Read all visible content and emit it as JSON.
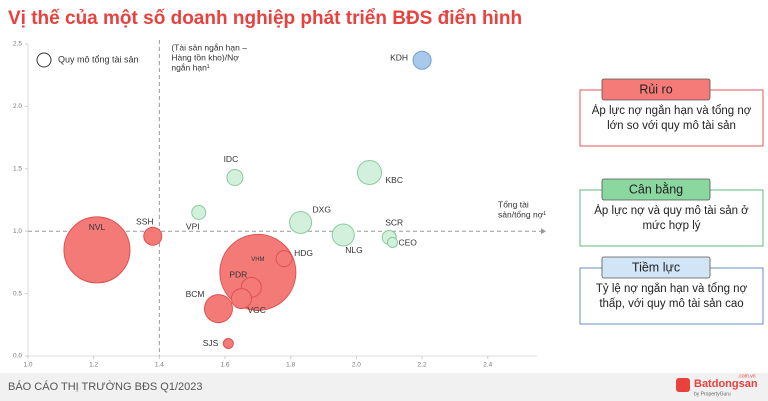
{
  "chart_data": {
    "type": "bubble",
    "title": "Vị thế của một số doanh nghiệp phát triển BĐS điển hình",
    "size_legend": "Quy mô tổng tài sản",
    "x_ref": 1.4,
    "y_ref": 1.0,
    "x_ref_label": [
      "(Tài sản ngắn hạn –",
      "Hàng tồn kho)/Nợ",
      "ngắn hạn¹"
    ],
    "y_ref_label": [
      "Tổng tài",
      "sản/tổng nợ¹"
    ],
    "xlim": [
      1.0,
      2.55
    ],
    "ylim": [
      0,
      2.5
    ],
    "xticks": [
      {
        "value": 1,
        "label": "1.0"
      },
      1.2,
      1.4,
      1.6,
      1.8,
      {
        "value": 2,
        "label": "2.0"
      },
      2.2,
      2.4
    ],
    "yticks": [
      {
        "value": 0,
        "label": "0.0"
      },
      0.5,
      {
        "value": 1,
        "label": "1.0"
      },
      1.5,
      {
        "value": 2,
        "label": "2.0"
      },
      2.5
    ],
    "series": [
      {
        "name": "Rủi ro",
        "color": "#f47a77",
        "description": "Áp lực nợ ngắn hạn và tổng nợ lớn so với quy mô tài sản",
        "labels": [
          "NVL",
          "VHM",
          "BCM",
          "SSH",
          "PDR",
          "VGC",
          "HDG",
          "SJS"
        ],
        "x": [
          1.21,
          1.7,
          1.58,
          1.38,
          1.68,
          1.65,
          1.78,
          1.61
        ],
        "y": [
          0.85,
          0.67,
          0.38,
          0.96,
          0.55,
          0.46,
          0.78,
          0.1
        ],
        "size": [
          1089,
          1444,
          196,
          81,
          100,
          100,
          64,
          25
        ]
      },
      {
        "name": "Cân bằng",
        "color": "#d3f0dc",
        "description": "Áp lực nợ và quy mô tài sản ở mức hợp lý",
        "labels": [
          "VPI",
          "IDC",
          "DXG",
          "NLG",
          "KBC",
          "SCR",
          "CEO"
        ],
        "x": [
          1.52,
          1.63,
          1.83,
          1.96,
          2.04,
          2.1,
          2.11
        ],
        "y": [
          1.15,
          1.43,
          1.07,
          0.97,
          1.47,
          0.95,
          0.91
        ],
        "size": [
          49,
          64,
          121,
          121,
          144,
          49,
          25
        ]
      },
      {
        "name": "Tiềm lực",
        "color": "#a9c9ec",
        "description": "Tỷ lệ nợ ngắn hạn và tổng nợ thấp, với quy mô tài sản cao",
        "labels": [
          "KDH"
        ],
        "x": [
          2.2
        ],
        "y": [
          2.37
        ],
        "size": [
          81
        ]
      }
    ],
    "footer": "BÁO CÁO THỊ TRƯỜNG BĐS Q1/2023",
    "logo": {
      "name": "Batdongsan",
      "domain": ".com.vn",
      "by": "by PropertyGuru"
    }
  }
}
